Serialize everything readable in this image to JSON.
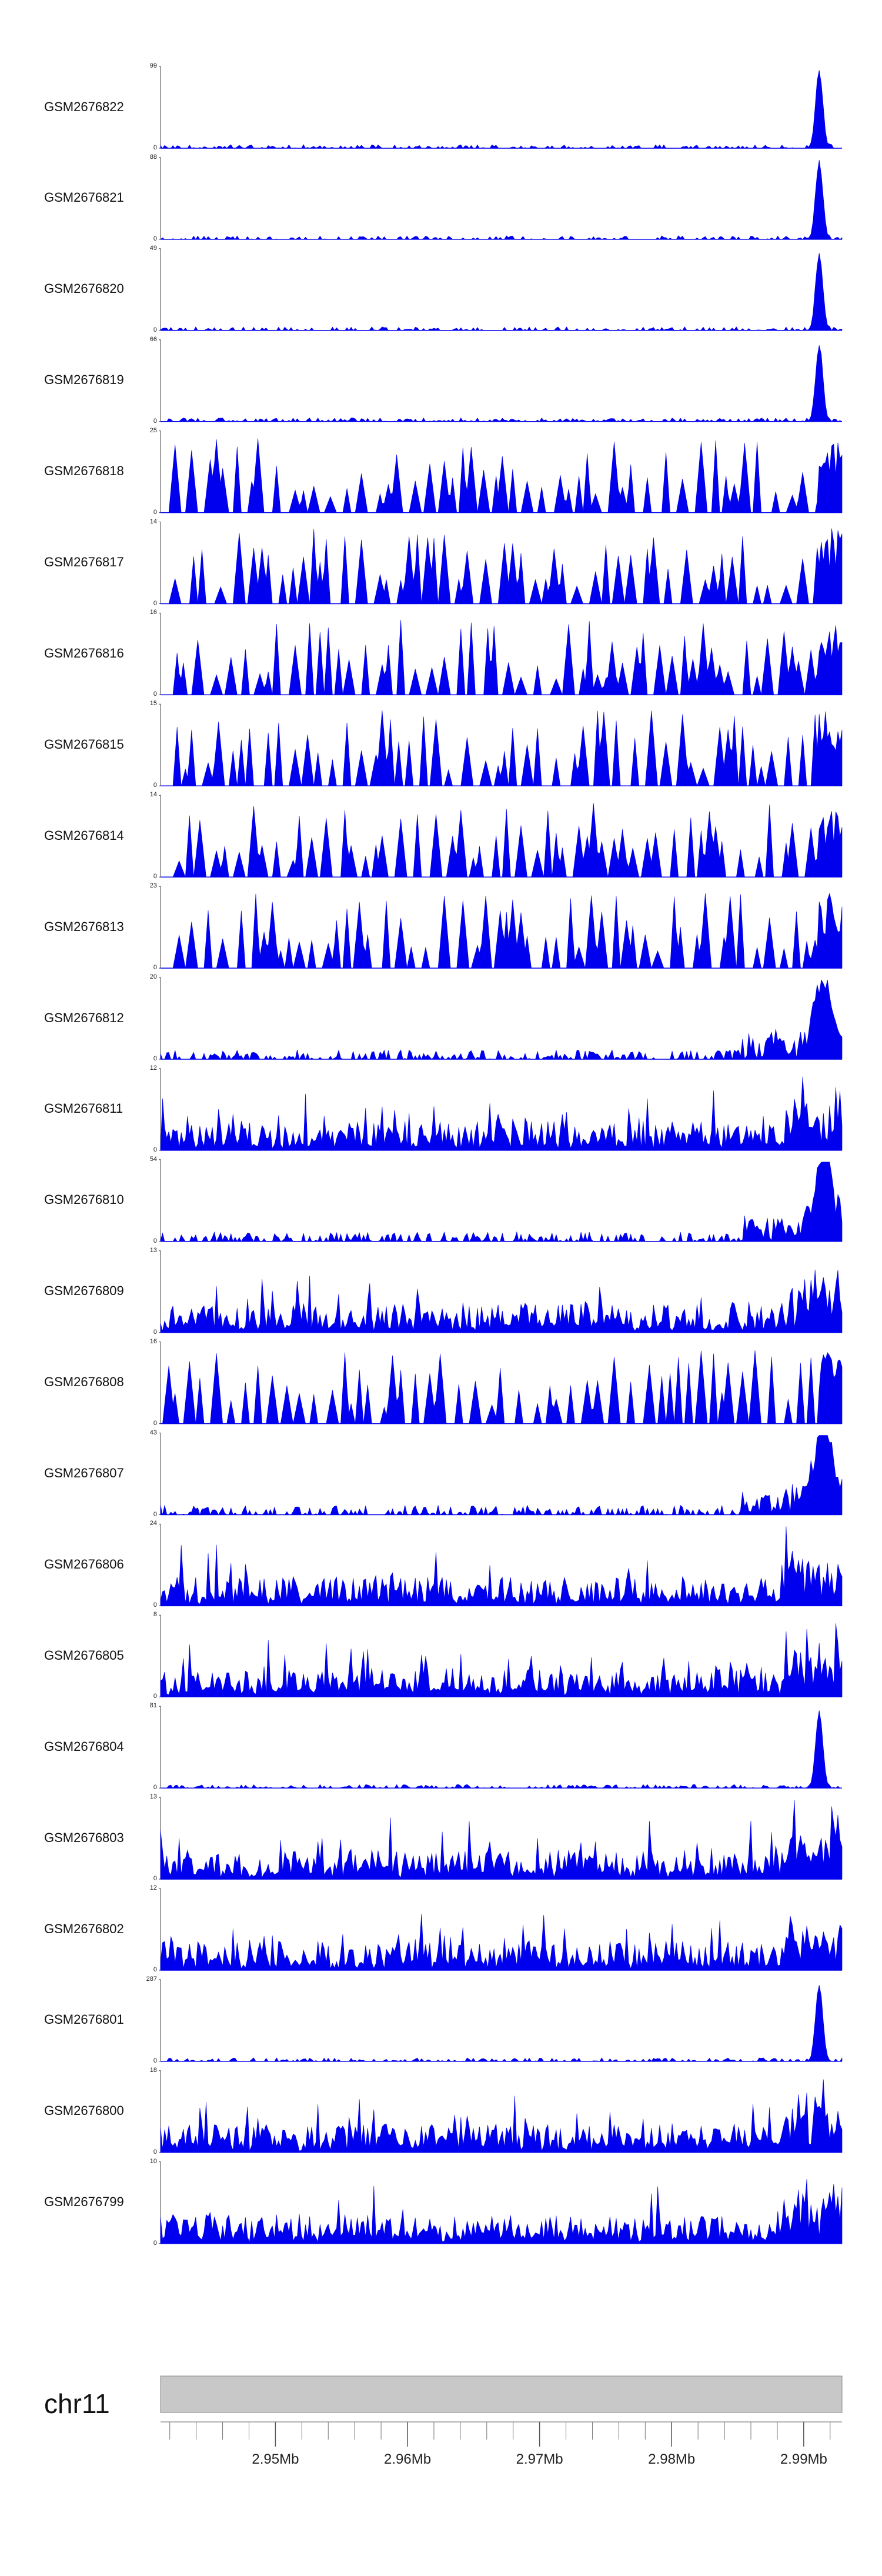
{
  "chart_data": {
    "type": "area",
    "chromosome": "chr11",
    "x_range_mb": [
      2.9413,
      2.9929
    ],
    "series_color": "#0000ee",
    "ideogram_color": "#c8c8c8",
    "x_ticks": [
      {
        "label": "2.95Mb",
        "value": 2.95
      },
      {
        "label": "2.96Mb",
        "value": 2.96
      },
      {
        "label": "2.97Mb",
        "value": 2.97
      },
      {
        "label": "2.98Mb",
        "value": 2.98
      },
      {
        "label": "2.99Mb",
        "value": 2.99
      }
    ],
    "tracks": [
      {
        "name": "GSM2676822",
        "ymax": "99",
        "ymin": "0",
        "profile": "peak"
      },
      {
        "name": "GSM2676821",
        "ymax": "88",
        "ymin": "0",
        "profile": "peak"
      },
      {
        "name": "GSM2676820",
        "ymax": "49",
        "ymin": "0",
        "profile": "peak"
      },
      {
        "name": "GSM2676819",
        "ymax": "66",
        "ymin": "0",
        "profile": "peak"
      },
      {
        "name": "GSM2676818",
        "ymax": "25",
        "ymin": "0",
        "profile": "sparse"
      },
      {
        "name": "GSM2676817",
        "ymax": "14",
        "ymin": "0",
        "profile": "sparse"
      },
      {
        "name": "GSM2676816",
        "ymax": "16",
        "ymin": "0",
        "profile": "sparse"
      },
      {
        "name": "GSM2676815",
        "ymax": "15",
        "ymin": "0",
        "profile": "sparse"
      },
      {
        "name": "GSM2676814",
        "ymax": "14",
        "ymin": "0",
        "profile": "sparse"
      },
      {
        "name": "GSM2676813",
        "ymax": "23",
        "ymin": "0",
        "profile": "sparse"
      },
      {
        "name": "GSM2676812",
        "ymax": "20",
        "ymin": "0",
        "profile": "end"
      },
      {
        "name": "GSM2676811",
        "ymax": "12",
        "ymin": "0",
        "profile": "dense"
      },
      {
        "name": "GSM2676810",
        "ymax": "54",
        "ymin": "0",
        "profile": "end"
      },
      {
        "name": "GSM2676809",
        "ymax": "13",
        "ymin": "0",
        "profile": "dense"
      },
      {
        "name": "GSM2676808",
        "ymax": "16",
        "ymin": "0",
        "profile": "sparse"
      },
      {
        "name": "GSM2676807",
        "ymax": "43",
        "ymin": "0",
        "profile": "end"
      },
      {
        "name": "GSM2676806",
        "ymax": "24",
        "ymin": "0",
        "profile": "dense"
      },
      {
        "name": "GSM2676805",
        "ymax": "8",
        "ymin": "0",
        "profile": "dense"
      },
      {
        "name": "GSM2676804",
        "ymax": "81",
        "ymin": "0",
        "profile": "peak"
      },
      {
        "name": "GSM2676803",
        "ymax": "13",
        "ymin": "0",
        "profile": "dense"
      },
      {
        "name": "GSM2676802",
        "ymax": "12",
        "ymin": "0",
        "profile": "dense"
      },
      {
        "name": "GSM2676801",
        "ymax": "287",
        "ymin": "0",
        "profile": "peak"
      },
      {
        "name": "GSM2676800",
        "ymax": "18",
        "ymin": "0",
        "profile": "dense"
      },
      {
        "name": "GSM2676799",
        "ymax": "10",
        "ymin": "0",
        "profile": "dense"
      }
    ]
  }
}
